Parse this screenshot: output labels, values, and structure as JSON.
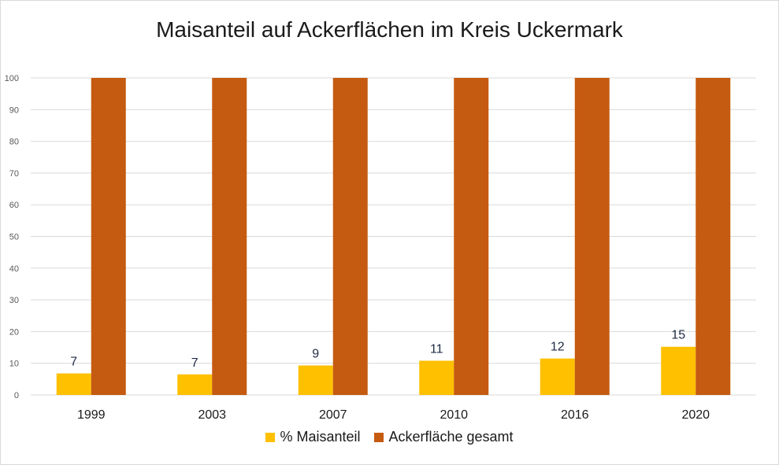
{
  "chart_data": {
    "type": "bar",
    "title": "Maisanteil auf Ackerflächen im Kreis Uckermark",
    "xlabel": "",
    "ylabel": "",
    "ylim": [
      0,
      100
    ],
    "yticks": [
      "0",
      "10",
      "20",
      "30",
      "40",
      "50",
      "60",
      "70",
      "80",
      "90",
      "100"
    ],
    "categories": [
      "1999",
      "2003",
      "2007",
      "2010",
      "2016",
      "2020"
    ],
    "series": [
      {
        "name": "% Maisanteil",
        "color": "#ffc000",
        "values": [
          6.8,
          6.5,
          9.3,
          10.8,
          11.5,
          15.2
        ],
        "labels": [
          "7",
          "7",
          "9",
          "11",
          "12",
          "15"
        ]
      },
      {
        "name": "Ackerfläche gesamt",
        "color": "#c55a11",
        "values": [
          100,
          100,
          100,
          100,
          100,
          100
        ]
      }
    ],
    "grid": true,
    "legend": "bottom-center"
  }
}
